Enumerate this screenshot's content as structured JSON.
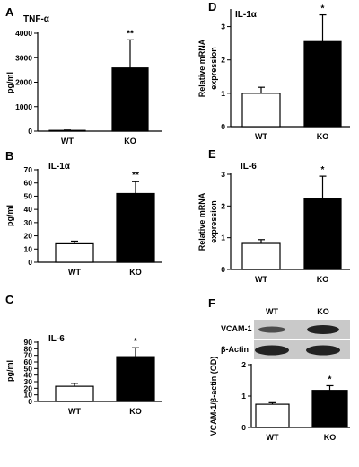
{
  "chart_data": [
    {
      "panel": "A",
      "type": "bar",
      "title": "TNF-α",
      "xlabel": "",
      "ylabel": "pg/ml",
      "categories": [
        "WT",
        "KO"
      ],
      "ylim": [
        0,
        4000
      ],
      "yticks": [
        0,
        1000,
        2000,
        3000,
        4000
      ],
      "series": [
        {
          "values": [
            30,
            2580
          ],
          "errors": [
            15,
            1150
          ]
        }
      ],
      "significance": "**"
    },
    {
      "panel": "B",
      "type": "bar",
      "title": "IL-1α",
      "xlabel": "",
      "ylabel": "pg/ml",
      "categories": [
        "WT",
        "KO"
      ],
      "ylim": [
        0,
        70
      ],
      "yticks": [
        0,
        10,
        20,
        30,
        40,
        50,
        60,
        70
      ],
      "series": [
        {
          "values": [
            14,
            52
          ],
          "errors": [
            2,
            9
          ]
        }
      ],
      "significance": "**"
    },
    {
      "panel": "C",
      "type": "bar",
      "title": "IL-6",
      "xlabel": "",
      "ylabel": "pg/ml",
      "categories": [
        "WT",
        "KO"
      ],
      "ylim": [
        0,
        90
      ],
      "yticks": [
        0,
        10,
        20,
        30,
        40,
        50,
        60,
        70,
        80,
        90
      ],
      "series": [
        {
          "values": [
            23,
            68
          ],
          "errors": [
            4.5,
            13.5
          ]
        }
      ],
      "significance": "*"
    },
    {
      "panel": "D",
      "type": "bar",
      "title": "IL-1α",
      "xlabel": "",
      "ylabel": "Relative mRNA expression",
      "categories": [
        "WT",
        "KO"
      ],
      "ylim": [
        0,
        3.5
      ],
      "yticks": [
        0,
        1,
        2,
        3
      ],
      "series": [
        {
          "values": [
            1.0,
            2.55
          ],
          "errors": [
            0.18,
            0.8
          ]
        }
      ],
      "significance": "*"
    },
    {
      "panel": "E",
      "type": "bar",
      "title": "IL-6",
      "xlabel": "",
      "ylabel": "Relative mRNA expression",
      "categories": [
        "WT",
        "KO"
      ],
      "ylim": [
        0,
        3
      ],
      "yticks": [
        0,
        1,
        2,
        3
      ],
      "series": [
        {
          "values": [
            0.82,
            2.22
          ],
          "errors": [
            0.12,
            0.72
          ]
        }
      ],
      "significance": "*"
    },
    {
      "panel": "F",
      "type": "bar",
      "title": "",
      "xlabel": "",
      "ylabel": "VCAM-1/β-actin (OD)",
      "categories": [
        "WT",
        "KO"
      ],
      "ylim": [
        0,
        2
      ],
      "yticks": [
        0,
        1,
        2
      ],
      "series": [
        {
          "values": [
            0.74,
            1.18
          ],
          "errors": [
            0.05,
            0.15
          ]
        }
      ],
      "significance": "*",
      "blot": {
        "lanes": [
          "WT",
          "KO"
        ],
        "rows": [
          "VCAM-1",
          "β-Actin"
        ]
      }
    }
  ],
  "colors": {
    "wt_fill": "#ffffff",
    "ko_fill": "#000000",
    "axis": "#000000",
    "blot_bg": "#c9c9c9",
    "blot_band": "#222222"
  }
}
